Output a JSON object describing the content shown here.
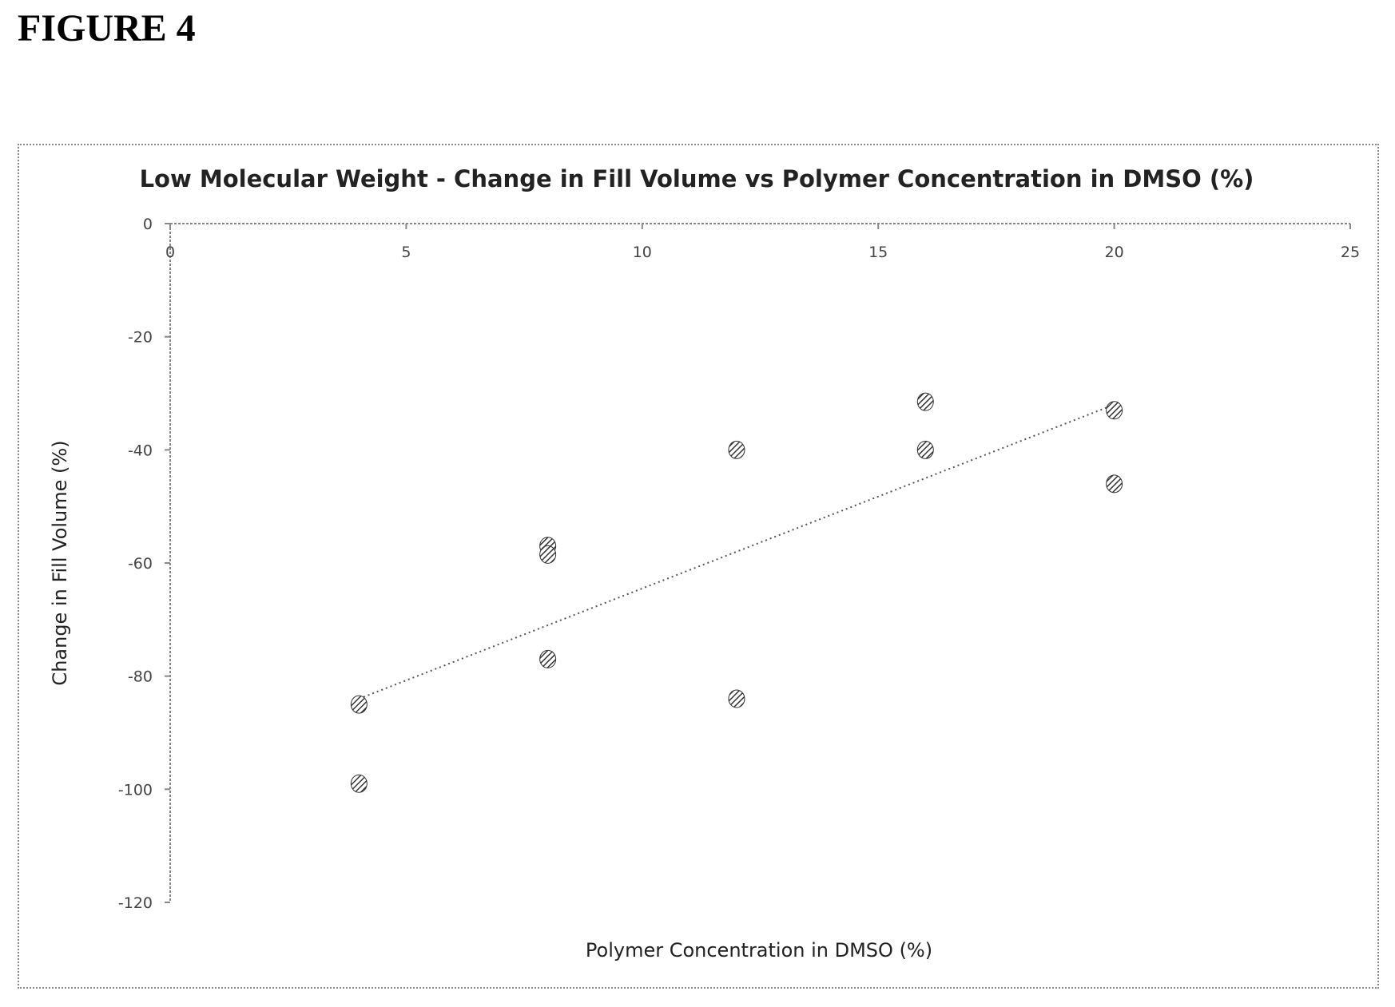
{
  "figure_label": "FIGURE 4",
  "chart_data": {
    "type": "scatter",
    "title": "Low Molecular Weight - Change in Fill Volume vs Polymer Concentration in DMSO (%)",
    "xlabel": "Polymer Concentration in DMSO (%)",
    "ylabel": "Change in Fill Volume (%)",
    "xlim": [
      0,
      25
    ],
    "ylim": [
      -120,
      0
    ],
    "x_ticks": [
      0,
      5,
      10,
      15,
      20,
      25
    ],
    "y_ticks": [
      0,
      -20,
      -40,
      -60,
      -80,
      -100,
      -120
    ],
    "x_axis_position": "top",
    "grid": false,
    "legend": "none",
    "points": [
      {
        "x": 4,
        "y": -85
      },
      {
        "x": 4,
        "y": -99
      },
      {
        "x": 8,
        "y": -57
      },
      {
        "x": 8,
        "y": -58.5
      },
      {
        "x": 8,
        "y": -77
      },
      {
        "x": 12,
        "y": -40
      },
      {
        "x": 12,
        "y": -84
      },
      {
        "x": 16,
        "y": -31.5
      },
      {
        "x": 16,
        "y": -40
      },
      {
        "x": 20,
        "y": -33
      },
      {
        "x": 20,
        "y": -46
      }
    ],
    "trendline": {
      "type": "linear",
      "style": "dotted",
      "x": [
        4,
        20
      ],
      "y": [
        -84,
        -32
      ]
    },
    "marker_style": "hatched",
    "colors": {
      "marker": "#333333",
      "axis": "#888888",
      "trendline": "#555555"
    }
  }
}
